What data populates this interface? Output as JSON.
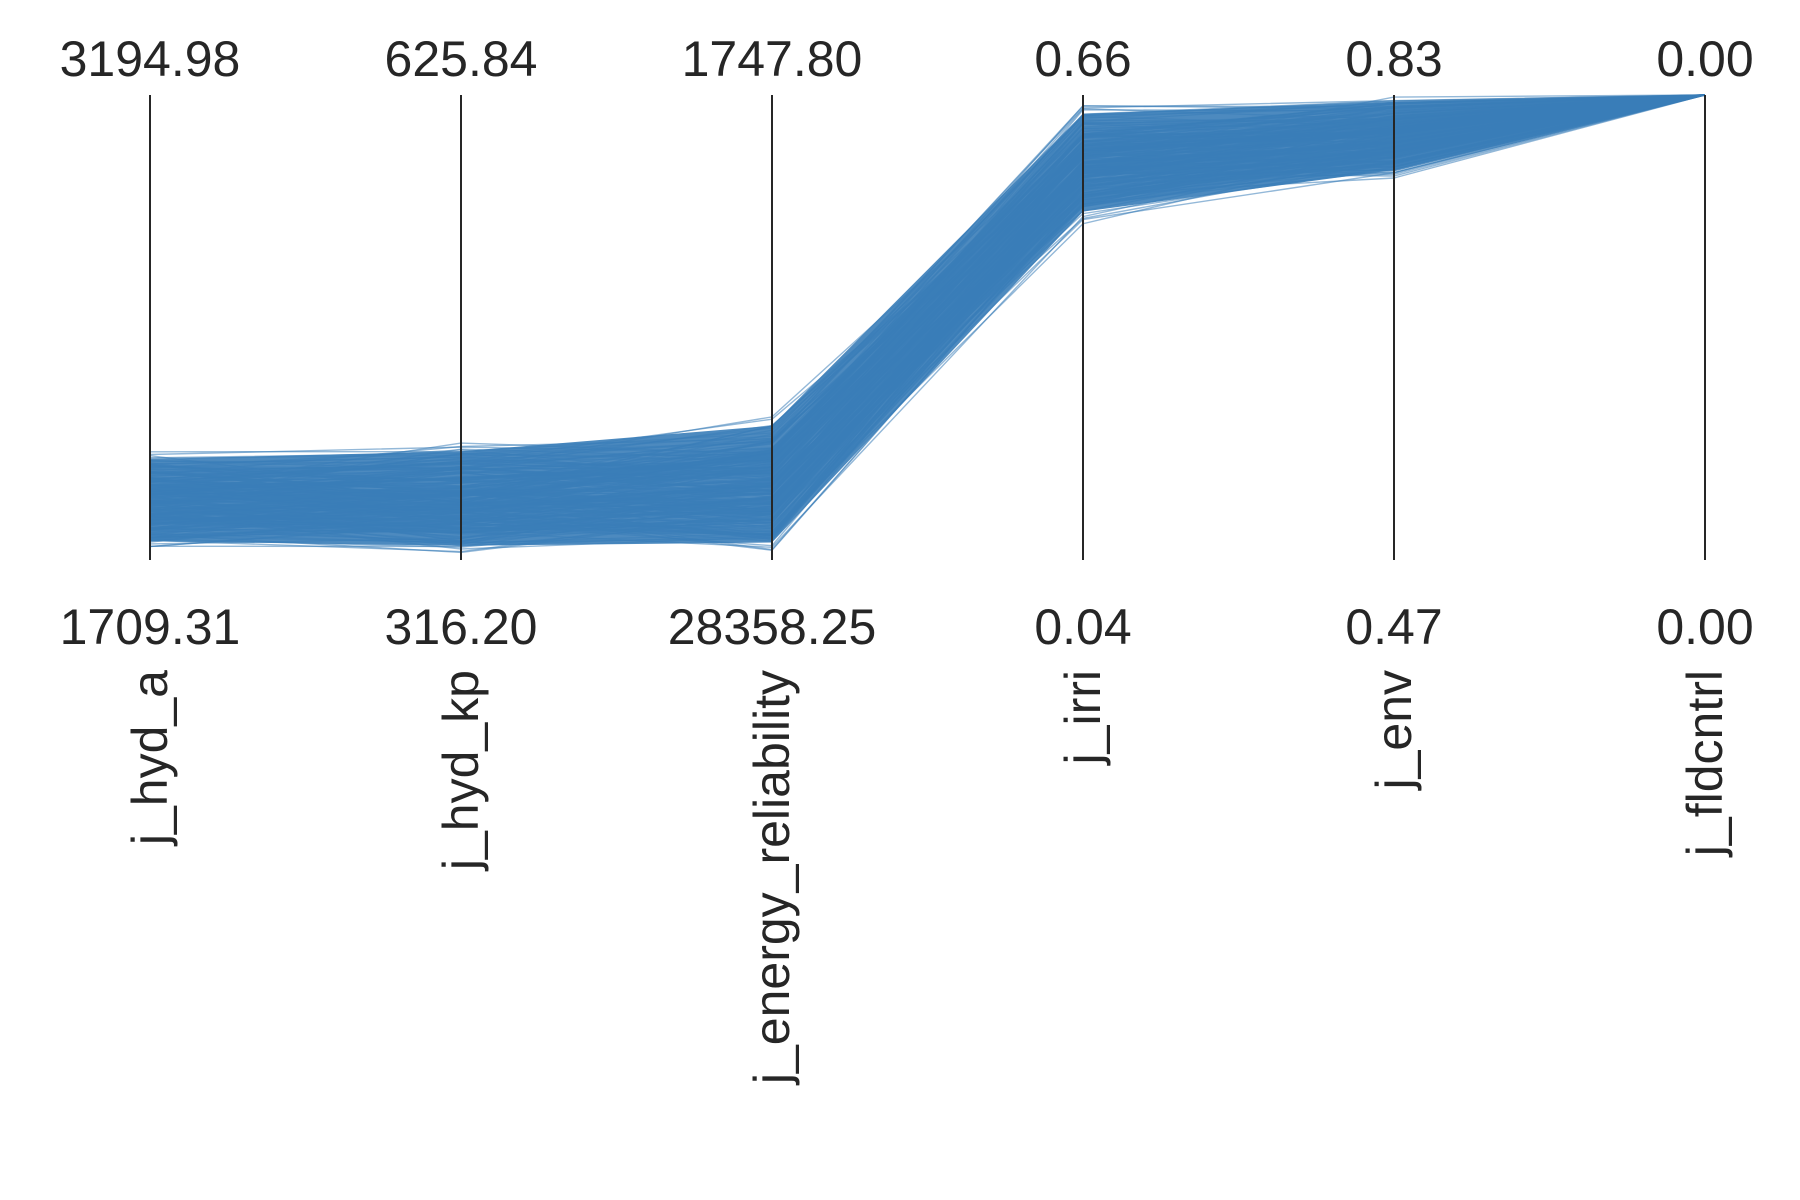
{
  "chart_data": {
    "type": "parallel_coordinates",
    "title": "",
    "line_color": "#3a7db8",
    "axis_color": "#262626",
    "grid": false,
    "legend": "none",
    "axes": [
      {
        "label": "j_hyd_a",
        "top": "3194.98",
        "bottom": "1709.31",
        "top_value": 3194.98,
        "bottom_value": 1709.31
      },
      {
        "label": "j_hyd_kp",
        "top": "625.84",
        "bottom": "316.20",
        "top_value": 625.84,
        "bottom_value": 316.2
      },
      {
        "label": "j_energy_reliability",
        "top": "1747.80",
        "bottom": "28358.25",
        "top_value": 1747.8,
        "bottom_value": 28358.25
      },
      {
        "label": "j_irri",
        "top": "0.66",
        "bottom": "0.04",
        "top_value": 0.66,
        "bottom_value": 0.04
      },
      {
        "label": "j_env",
        "top": "0.83",
        "bottom": "0.47",
        "top_value": 0.83,
        "bottom_value": 0.47
      },
      {
        "label": "j_fldcntrl",
        "top": "0.00",
        "bottom": "0.00",
        "top_value": 0.0,
        "bottom_value": 0.0
      }
    ],
    "value_bands": [
      {
        "axis": "j_hyd_a",
        "min": 1729.5,
        "max": 2058.4
      },
      {
        "axis": "j_hyd_kp",
        "min": 316.2,
        "max": 394.9
      },
      {
        "axis": "j_energy_reliability",
        "min": 20010.0,
        "max": 28358.25
      },
      {
        "axis": "j_irri",
        "min": 0.485,
        "max": 0.648
      },
      {
        "axis": "j_env",
        "min": 0.764,
        "max": 0.83
      },
      {
        "axis": "j_fldcntrl",
        "min": 0.0,
        "max": 0.0
      }
    ],
    "n_lines": 260
  }
}
